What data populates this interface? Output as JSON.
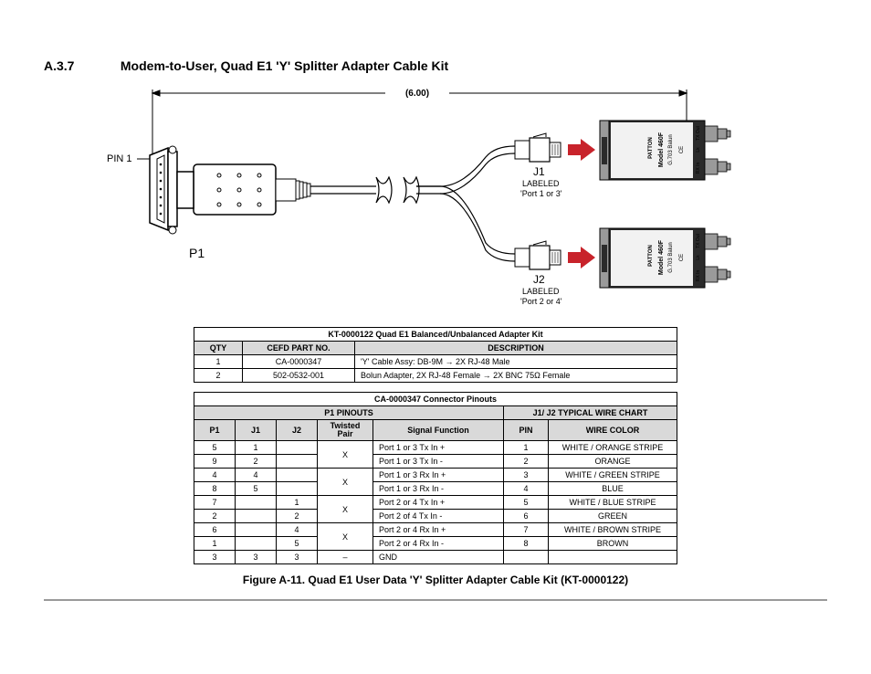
{
  "heading": {
    "num": "A.3.7",
    "title": "Modem-to-User, Quad E1 'Y' Splitter Adapter Cable Kit"
  },
  "diagram": {
    "dim_label": "(6.00)",
    "pin1": "PIN 1",
    "p1": "P1",
    "j1": "J1",
    "j1_lbl1": "LABELED",
    "j1_lbl2": "'Port 1 or 3'",
    "j2": "J2",
    "j2_lbl1": "LABELED",
    "j2_lbl2": "'Port 2 or 4'",
    "balun_model": "Model 460F",
    "balun_sub": "G.703 Balun",
    "balun_brand": "PATTON",
    "tx": "TX Out",
    "rx": "RX In",
    "lk": "Lk"
  },
  "kit_table": {
    "title": "KT-0000122 Quad E1 Balanced/Unbalanced Adapter Kit",
    "headers": {
      "qty": "QTY",
      "part": "CEFD PART NO.",
      "desc": "DESCRIPTION"
    },
    "rows": [
      {
        "qty": "1",
        "part": "CA-0000347",
        "desc": "'Y' Cable Assy: DB-9M → 2X RJ-48 Male"
      },
      {
        "qty": "2",
        "part": "502-0532-001",
        "desc": "Bolun Adapter, 2X RJ-48 Female → 2X BNC 75Ω Female"
      }
    ]
  },
  "pinout_table": {
    "title": "CA-0000347 Connector Pinouts",
    "left_head": "P1 PINOUTS",
    "right_head": "J1/ J2 TYPICAL WIRE CHART",
    "cols": {
      "p1": "P1",
      "j1": "J1",
      "j2": "J2",
      "tp": "Twisted\nPair",
      "sf": "Signal Function",
      "pin": "PIN",
      "wc": "WIRE COLOR"
    },
    "rows": [
      {
        "p1": "5",
        "j1": "1",
        "j2": "",
        "tp": "X",
        "tp_span": 2,
        "sf": "Port 1 or 3 Tx In +",
        "pin": "1",
        "wc": "WHITE / ORANGE STRIPE"
      },
      {
        "p1": "9",
        "j1": "2",
        "j2": "",
        "sf": "Port 1 or 3 Tx In -",
        "pin": "2",
        "wc": "ORANGE"
      },
      {
        "p1": "4",
        "j1": "4",
        "j2": "",
        "tp": "X",
        "tp_span": 2,
        "sf": "Port 1 or 3 Rx In +",
        "pin": "3",
        "wc": "WHITE / GREEN STRIPE"
      },
      {
        "p1": "8",
        "j1": "5",
        "j2": "",
        "sf": "Port 1 or 3 Rx In -",
        "pin": "4",
        "wc": "BLUE"
      },
      {
        "p1": "7",
        "j1": "",
        "j2": "1",
        "tp": "X",
        "tp_span": 2,
        "sf": "Port 2 or 4 Tx In +",
        "pin": "5",
        "wc": "WHITE / BLUE STRIPE"
      },
      {
        "p1": "2",
        "j1": "",
        "j2": "2",
        "sf": "Port 2 of 4 Tx In -",
        "pin": "6",
        "wc": "GREEN"
      },
      {
        "p1": "6",
        "j1": "",
        "j2": "4",
        "tp": "X",
        "tp_span": 2,
        "sf": "Port 2 or 4 Rx In +",
        "pin": "7",
        "wc": "WHITE / BROWN STRIPE"
      },
      {
        "p1": "1",
        "j1": "",
        "j2": "5",
        "sf": "Port 2 or 4 Rx In -",
        "pin": "8",
        "wc": "BROWN"
      },
      {
        "p1": "3",
        "j1": "3",
        "j2": "3",
        "tp": "–",
        "tp_span": 1,
        "sf": "GND",
        "pin": "",
        "wc": ""
      }
    ]
  },
  "figure_caption": "Figure A-11. Quad E1 User Data 'Y' Splitter Adapter Cable Kit (KT-0000122)",
  "colors": {
    "balun_fill": "#2b2b2b",
    "balun_label": "#f2f2f2",
    "arrow": "#c8232b",
    "metal": "#9a9a9a",
    "gray": "#d3d3d3"
  }
}
